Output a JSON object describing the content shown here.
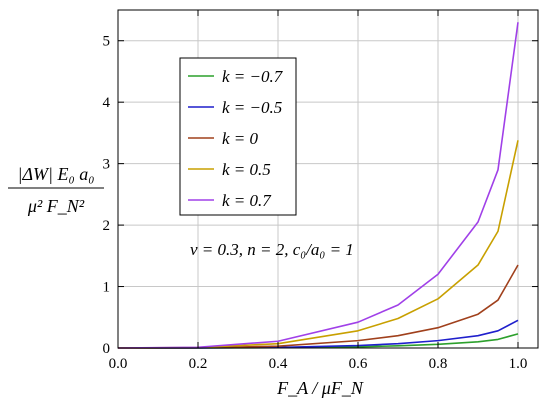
{
  "chart_data": {
    "type": "line",
    "xlabel": "F_A / μF_N",
    "ylabel_numerator": "|ΔW| E₀ a₀",
    "ylabel_denominator": "μ² F_N²",
    "xlim": [
      0.0,
      1.05
    ],
    "ylim": [
      0,
      5.5
    ],
    "x_ticks": [
      "0.0",
      "0.2",
      "0.4",
      "0.6",
      "0.8",
      "1.0"
    ],
    "y_ticks": [
      "0",
      "1",
      "2",
      "3",
      "4",
      "5"
    ],
    "grid": true,
    "legend_position": "top-left",
    "annotation": "ν = 0.3, n = 2, c₀/a₀ = 1",
    "series": [
      {
        "name": "k = −0.7",
        "color": "#2ca02c",
        "x": [
          0.0,
          0.2,
          0.4,
          0.6,
          0.7,
          0.8,
          0.9,
          0.95,
          1.0
        ],
        "y": [
          0.0,
          0.0,
          0.005,
          0.02,
          0.035,
          0.06,
          0.1,
          0.14,
          0.23
        ]
      },
      {
        "name": "k = −0.5",
        "color": "#1f1fcc",
        "x": [
          0.0,
          0.2,
          0.4,
          0.6,
          0.7,
          0.8,
          0.9,
          0.95,
          1.0
        ],
        "y": [
          0.0,
          0.001,
          0.01,
          0.04,
          0.07,
          0.12,
          0.2,
          0.28,
          0.45
        ]
      },
      {
        "name": "k = 0",
        "color": "#a0401c",
        "x": [
          0.0,
          0.2,
          0.4,
          0.6,
          0.7,
          0.8,
          0.9,
          0.95,
          1.0
        ],
        "y": [
          0.0,
          0.003,
          0.03,
          0.12,
          0.2,
          0.33,
          0.55,
          0.78,
          1.35
        ]
      },
      {
        "name": "k = 0.5",
        "color": "#c8a000",
        "x": [
          0.0,
          0.2,
          0.4,
          0.6,
          0.7,
          0.8,
          0.9,
          0.95,
          1.0
        ],
        "y": [
          0.0,
          0.008,
          0.07,
          0.28,
          0.48,
          0.8,
          1.35,
          1.9,
          3.38
        ]
      },
      {
        "name": "k = 0.7",
        "color": "#a040e8",
        "x": [
          0.0,
          0.2,
          0.4,
          0.6,
          0.7,
          0.8,
          0.9,
          0.95,
          1.0
        ],
        "y": [
          0.0,
          0.012,
          0.11,
          0.42,
          0.7,
          1.2,
          2.05,
          2.9,
          5.3
        ]
      }
    ]
  }
}
